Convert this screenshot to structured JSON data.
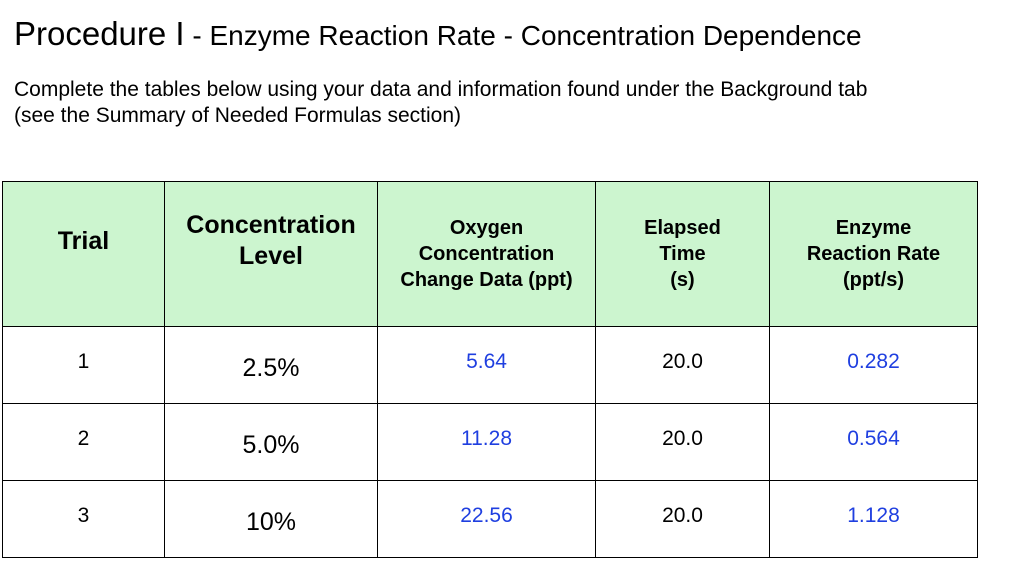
{
  "title": {
    "main": "Procedure I",
    "sub": " - Enzyme Reaction Rate - Concentration Dependence"
  },
  "instructions": {
    "line1": "Complete the tables below using your data and information found under the Background tab",
    "line2": "(see the Summary of Needed Formulas section)"
  },
  "colors": {
    "header_bg": "#ccf5cf",
    "accent": "#1f3fe0",
    "text": "#000000"
  },
  "table": {
    "headers": [
      {
        "lines": [
          "Trial"
        ]
      },
      {
        "lines": [
          "Concentration",
          "Level"
        ]
      },
      {
        "lines": [
          "Oxygen",
          "Concentration",
          "Change Data (ppt)"
        ]
      },
      {
        "lines": [
          "Elapsed",
          "Time",
          "(s)"
        ]
      },
      {
        "lines": [
          "Enzyme",
          "Reaction Rate",
          "(ppt/s)"
        ]
      }
    ],
    "rows": [
      {
        "trial": "1",
        "level": "2.5%",
        "oxygen": "5.64",
        "time": "20.0",
        "rate": "0.282"
      },
      {
        "trial": "2",
        "level": "5.0%",
        "oxygen": "11.28",
        "time": "20.0",
        "rate": "0.564"
      },
      {
        "trial": "3",
        "level": "10%",
        "oxygen": "22.56",
        "time": "20.0",
        "rate": "1.128"
      }
    ]
  }
}
